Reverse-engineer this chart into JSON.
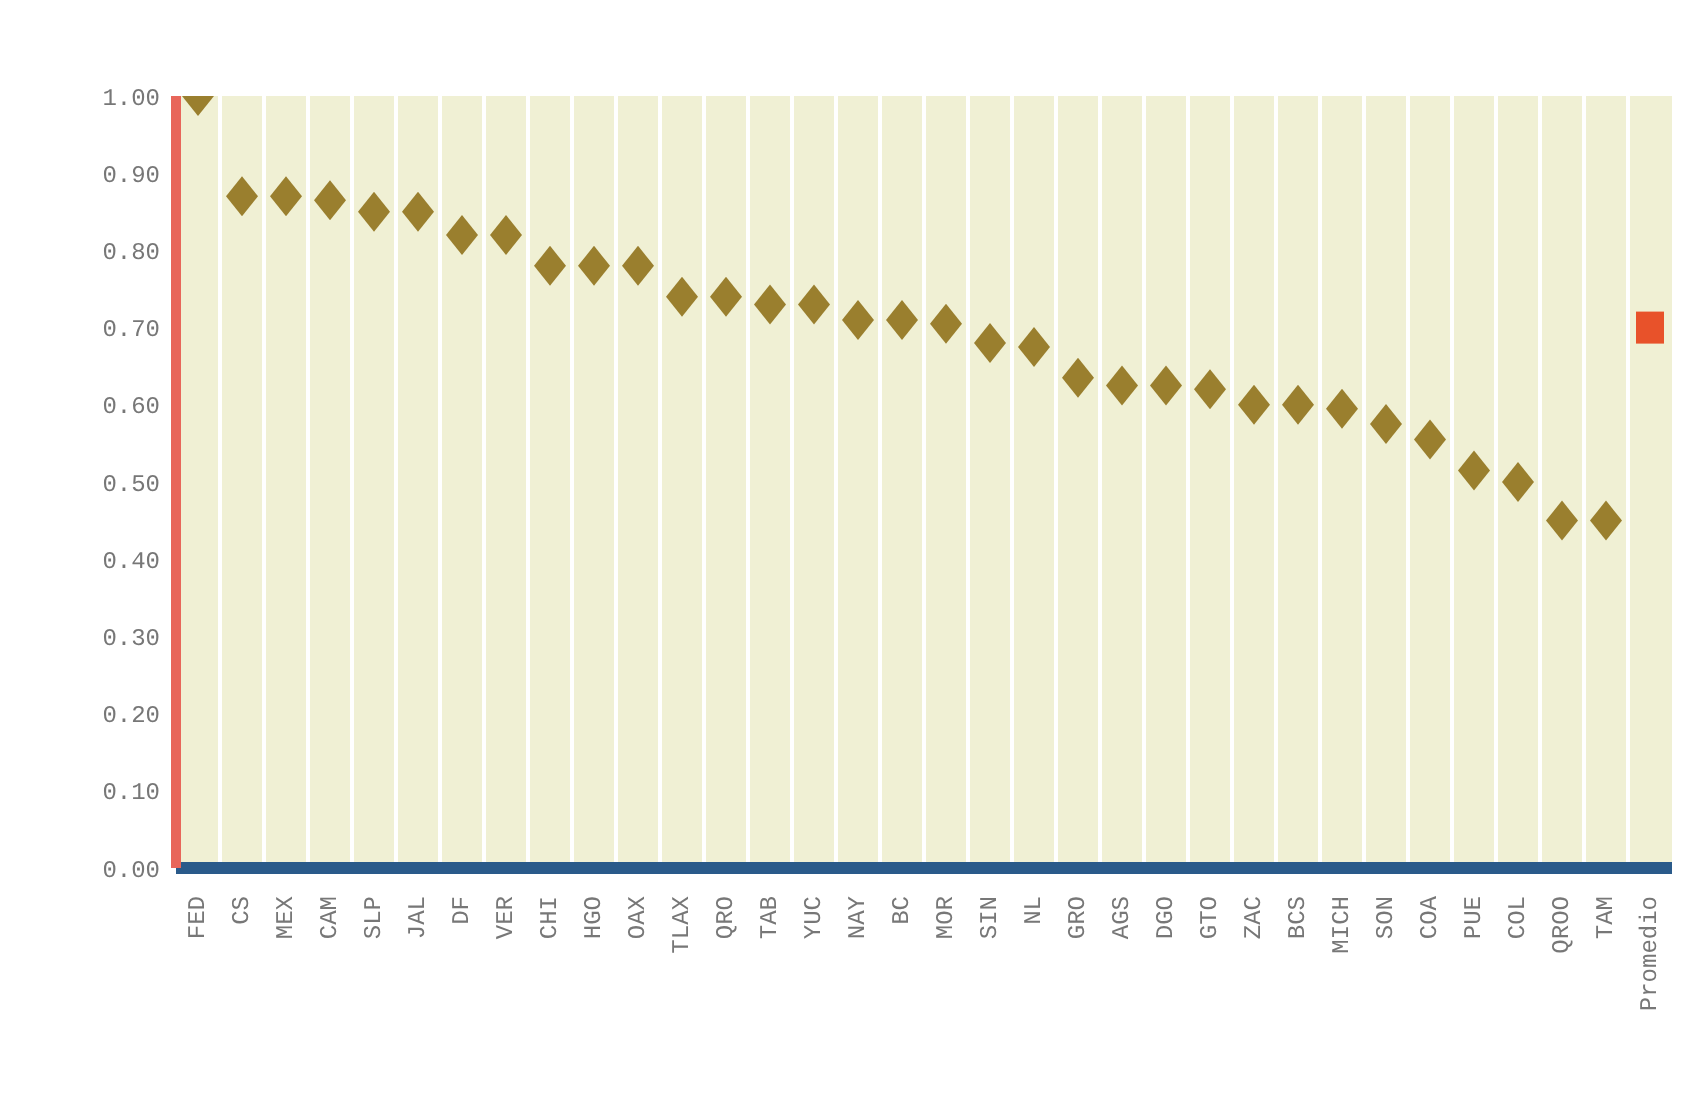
{
  "chart_data": {
    "type": "scatter",
    "categories": [
      "FED",
      "CS",
      "MEX",
      "CAM",
      "SLP",
      "JAL",
      "DF",
      "VER",
      "CHI",
      "HGO",
      "OAX",
      "TLAX",
      "QRO",
      "TAB",
      "YUC",
      "NAY",
      "BC",
      "MOR",
      "SIN",
      "NL",
      "GRO",
      "AGS",
      "DGO",
      "GTO",
      "ZAC",
      "BCS",
      "MICH",
      "SON",
      "COA",
      "PUE",
      "COL",
      "QROO",
      "TAM",
      "Promedio"
    ],
    "series": [
      {
        "color": "#9a7f2e",
        "marker": "diamond",
        "values": [
          1.0,
          0.87,
          0.87,
          0.865,
          0.85,
          0.85,
          0.82,
          0.82,
          0.78,
          0.78,
          0.78,
          0.74,
          0.74,
          0.73,
          0.73,
          0.71,
          0.71,
          0.705,
          0.68,
          0.675,
          0.635,
          0.625,
          0.625,
          0.62,
          0.6,
          0.6,
          0.595,
          0.575,
          0.555,
          0.515,
          0.5,
          0.45,
          0.45,
          null
        ]
      },
      {
        "color": "#e8522a",
        "marker": "square",
        "values": [
          null,
          null,
          null,
          null,
          null,
          null,
          null,
          null,
          null,
          null,
          null,
          null,
          null,
          null,
          null,
          null,
          null,
          null,
          null,
          null,
          null,
          null,
          null,
          null,
          null,
          null,
          null,
          null,
          null,
          null,
          null,
          null,
          null,
          0.7
        ]
      }
    ],
    "ylim": [
      0,
      1
    ],
    "yticks": [
      {
        "value": 0,
        "label": "0.00"
      },
      {
        "value": 0.1,
        "label": "0.10"
      },
      {
        "value": 0.2,
        "label": "0.20"
      },
      {
        "value": 0.3,
        "label": "0.30"
      },
      {
        "value": 0.4,
        "label": "0.40"
      },
      {
        "value": 0.5,
        "label": "0.50"
      },
      {
        "value": 0.6,
        "label": "0.60"
      },
      {
        "value": 0.7,
        "label": "0.70"
      },
      {
        "value": 0.8,
        "label": "0.80"
      },
      {
        "value": 0.9,
        "label": "0.90"
      },
      {
        "value": 1,
        "label": "1.00"
      }
    ],
    "grid": "x",
    "legend": false
  }
}
